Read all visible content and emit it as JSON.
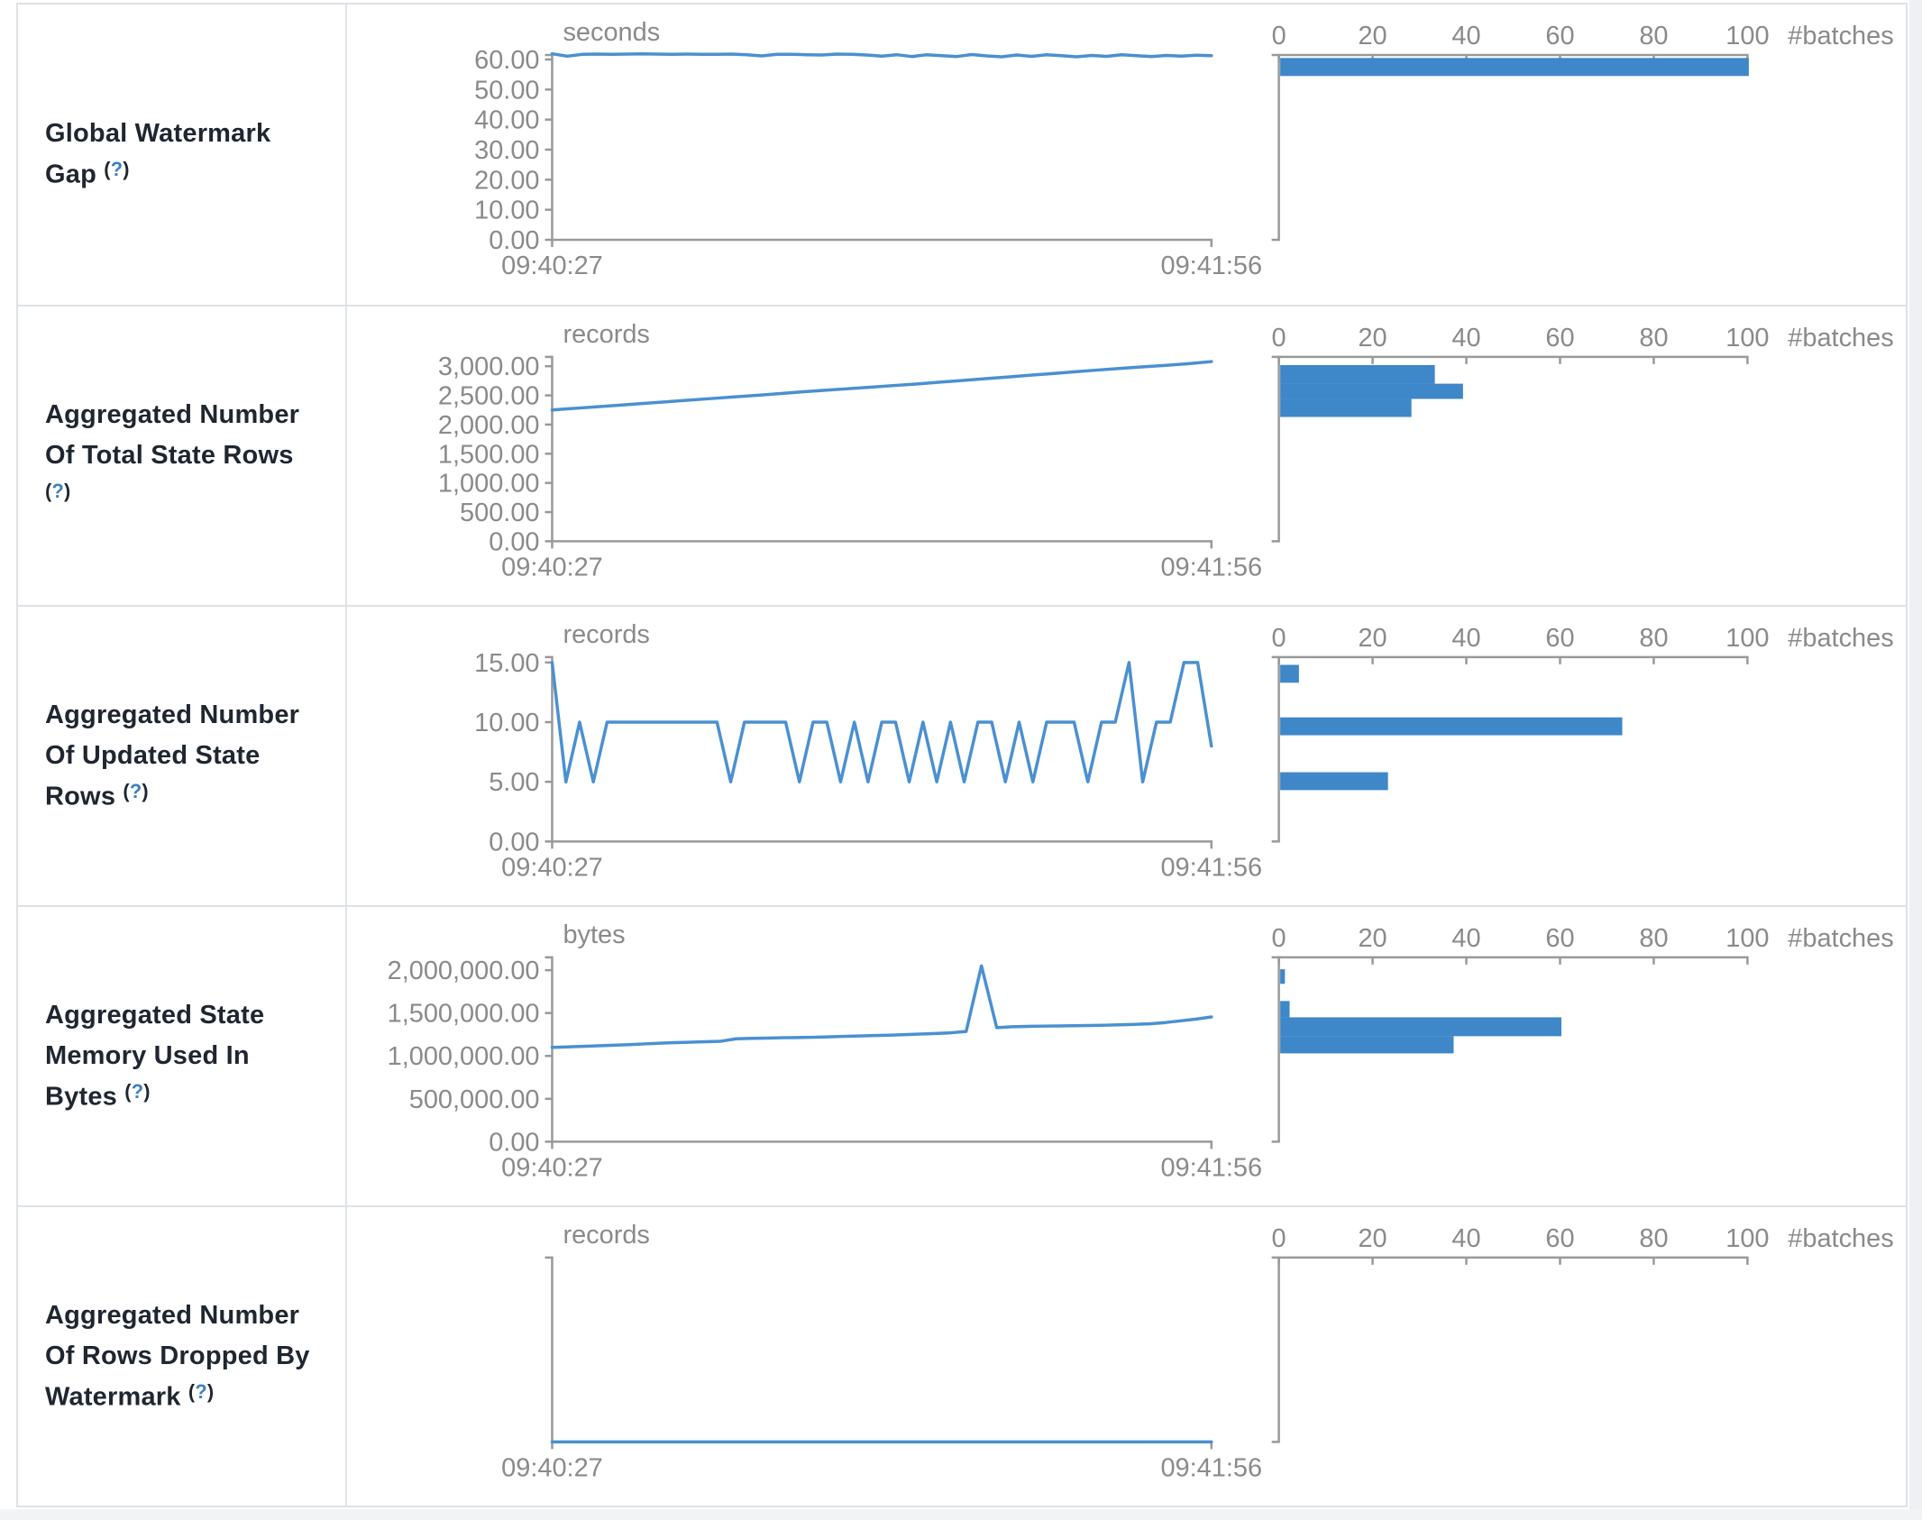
{
  "colors": {
    "bar": "#3e87c8",
    "line": "#4a90d2",
    "axis": "#999999",
    "chart_text": "#8a8a8a",
    "label_text": "#1f2630",
    "help_link": "#3e7fc1",
    "border": "#dee2e6"
  },
  "x_axis": {
    "start": "09:40:27",
    "end": "09:41:56"
  },
  "hist_axis": {
    "ticks": [
      0,
      20,
      40,
      60,
      80,
      100
    ],
    "max": 100,
    "unit_label": "#batches"
  },
  "table": {
    "rows": [
      {
        "label": "Global Watermark Gap",
        "help_open": "(",
        "help_symbol": "?",
        "help_close": ")"
      },
      {
        "label": "Aggregated Number Of Total State Rows",
        "help_open": "(",
        "help_symbol": "?",
        "help_close": ")"
      },
      {
        "label": "Aggregated Number Of Updated State Rows",
        "help_open": "(",
        "help_symbol": "?",
        "help_close": ")"
      },
      {
        "label": "Aggregated State Memory Used In Bytes",
        "help_open": "(",
        "help_symbol": "?",
        "help_close": ")"
      },
      {
        "label": "Aggregated Number Of Rows Dropped By Watermark",
        "help_open": "(",
        "help_symbol": "?",
        "help_close": ")"
      }
    ]
  },
  "chart_data": [
    {
      "row": "Global Watermark Gap",
      "type": "line",
      "unit": "seconds",
      "x_range": [
        "09:40:27",
        "09:41:56"
      ],
      "ylim": [
        0,
        61.5
      ],
      "yticks": [
        {
          "v": 60,
          "label": "60.00"
        },
        {
          "v": 50,
          "label": "50.00"
        },
        {
          "v": 40,
          "label": "40.00"
        },
        {
          "v": 30,
          "label": "30.00"
        },
        {
          "v": 20,
          "label": "20.00"
        },
        {
          "v": 10,
          "label": "10.00"
        },
        {
          "v": 0,
          "label": "0.00"
        }
      ],
      "series": [
        61.9,
        61.1,
        61.7,
        61.8,
        61.75,
        61.8,
        61.85,
        61.8,
        61.75,
        61.8,
        61.7,
        61.75,
        61.8,
        61.6,
        61.2,
        61.7,
        61.75,
        61.6,
        61.5,
        61.8,
        61.75,
        61.5,
        61.1,
        61.6,
        61.0,
        61.55,
        61.3,
        61.0,
        61.65,
        61.2,
        60.9,
        61.5,
        61.05,
        61.6,
        61.3,
        60.9,
        61.35,
        61.05,
        61.55,
        61.25,
        61.0,
        61.35,
        61.1,
        61.45,
        61.3
      ],
      "histogram_bins": [
        {
          "lo": 54.5,
          "hi": 60.5,
          "count": 100
        }
      ]
    },
    {
      "row": "Aggregated Number Of Total State Rows",
      "type": "line",
      "unit": "records",
      "x_range": [
        "09:40:27",
        "09:41:56"
      ],
      "ylim": [
        0,
        3160
      ],
      "yticks": [
        {
          "v": 3000,
          "label": "3,000.00"
        },
        {
          "v": 2500,
          "label": "2,500.00"
        },
        {
          "v": 2000,
          "label": "2,000.00"
        },
        {
          "v": 1500,
          "label": "1,500.00"
        },
        {
          "v": 1000,
          "label": "1,000.00"
        },
        {
          "v": 500,
          "label": "500.00"
        },
        {
          "v": 0,
          "label": "0.00"
        }
      ],
      "series": [
        2250,
        2278,
        2306,
        2334,
        2362,
        2390,
        2418,
        2446,
        2474,
        2502,
        2530,
        2560,
        2588,
        2615,
        2640,
        2668,
        2695,
        2725,
        2755,
        2785,
        2815,
        2845,
        2875,
        2905,
        2935,
        2962,
        2990,
        3015,
        3045,
        3080
      ],
      "histogram_bins": [
        {
          "lo": 2700,
          "hi": 3020,
          "count": 33
        },
        {
          "lo": 2440,
          "hi": 2700,
          "count": 39
        },
        {
          "lo": 2130,
          "hi": 2440,
          "count": 28
        }
      ]
    },
    {
      "row": "Aggregated Number Of Updated State Rows",
      "type": "line",
      "unit": "records",
      "x_range": [
        "09:40:27",
        "09:41:56"
      ],
      "ylim": [
        0,
        15.45
      ],
      "yticks": [
        {
          "v": 15,
          "label": "15.00"
        },
        {
          "v": 10,
          "label": "10.00"
        },
        {
          "v": 5,
          "label": "5.00"
        },
        {
          "v": 0,
          "label": "0.00"
        }
      ],
      "series": [
        15,
        5,
        10,
        5,
        10,
        10,
        10,
        10,
        10,
        10,
        10,
        10,
        10,
        5,
        10,
        10,
        10,
        10,
        5,
        10,
        10,
        5,
        10,
        5,
        10,
        10,
        5,
        10,
        5,
        10,
        5,
        10,
        10,
        5,
        10,
        5,
        10,
        10,
        10,
        5,
        10,
        10,
        15,
        5,
        10,
        10,
        15,
        15,
        8
      ],
      "histogram_bins": [
        {
          "lo": 13.3,
          "hi": 14.8,
          "count": 4
        },
        {
          "lo": 8.9,
          "hi": 10.4,
          "count": 73
        },
        {
          "lo": 4.3,
          "hi": 5.8,
          "count": 23
        }
      ]
    },
    {
      "row": "Aggregated State Memory Used In Bytes",
      "type": "line",
      "unit": "bytes",
      "x_range": [
        "09:40:27",
        "09:41:56"
      ],
      "ylim": [
        0,
        2150000
      ],
      "yticks": [
        {
          "v": 2000000,
          "label": "2,000,000.00"
        },
        {
          "v": 1500000,
          "label": "1,500,000.00"
        },
        {
          "v": 1000000,
          "label": "1,000,000.00"
        },
        {
          "v": 500000,
          "label": "500,000.00"
        },
        {
          "v": 0,
          "label": "0.00"
        }
      ],
      "series": [
        1100000,
        1105000,
        1112000,
        1118000,
        1125000,
        1132000,
        1140000,
        1148000,
        1155000,
        1160000,
        1166000,
        1172000,
        1200000,
        1205000,
        1208000,
        1212000,
        1215000,
        1218000,
        1222000,
        1228000,
        1232000,
        1238000,
        1242000,
        1248000,
        1255000,
        1262000,
        1270000,
        1285000,
        2050000,
        1330000,
        1340000,
        1345000,
        1348000,
        1350000,
        1352000,
        1355000,
        1358000,
        1362000,
        1368000,
        1375000,
        1390000,
        1410000,
        1430000,
        1455000
      ],
      "histogram_bins": [
        {
          "lo": 1840000,
          "hi": 2010000,
          "count": 1
        },
        {
          "lo": 1450000,
          "hi": 1640000,
          "count": 2
        },
        {
          "lo": 1230000,
          "hi": 1450000,
          "count": 60
        },
        {
          "lo": 1030000,
          "hi": 1230000,
          "count": 37
        }
      ]
    },
    {
      "row": "Aggregated Number Of Rows Dropped By Watermark",
      "type": "line",
      "unit": "records",
      "x_range": [
        "09:40:27",
        "09:41:56"
      ],
      "ylim": [
        0,
        1
      ],
      "yticks": [],
      "series": [
        0,
        0,
        0,
        0,
        0,
        0,
        0,
        0,
        0,
        0,
        0,
        0,
        0,
        0,
        0,
        0,
        0,
        0,
        0,
        0,
        0,
        0,
        0,
        0
      ],
      "histogram_bins": []
    }
  ]
}
